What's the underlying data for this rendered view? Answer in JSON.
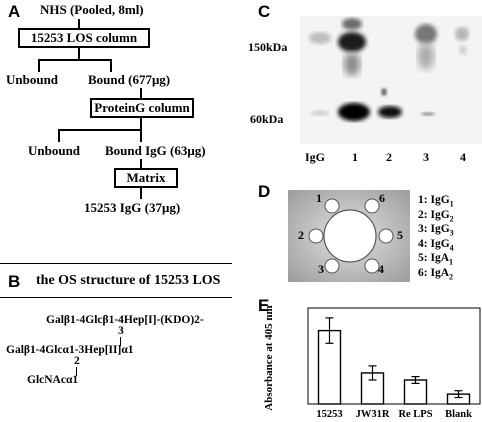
{
  "panelA": {
    "letter": "A",
    "source": "NHS (Pooled, 8ml)",
    "box1": "15253 LOS column",
    "unbound1": "Unbound",
    "bound1": "Bound (677μg)",
    "box2": "ProteinG column",
    "unbound2": "Unbound",
    "bound2": "Bound IgG (63μg)",
    "box3": "Matrix",
    "result": "15253 IgG (37μg)"
  },
  "panelB": {
    "letter": "B",
    "title": "the OS structure of 15253 LOS",
    "line1": "Galβ1-4Glcβ1-4Hep[I]-(KDO)2-",
    "num3": "3",
    "line2": "Galβ1-4Glcα1-3Hep[II]α1",
    "num2": "2",
    "line3": "GlcNAcα1"
  },
  "panelC": {
    "letter": "C",
    "marker_150": "150kDa",
    "marker_60": "60kDa",
    "lanes": [
      "IgG",
      "1",
      "2",
      "3",
      "4"
    ]
  },
  "panelD": {
    "letter": "D",
    "wells": [
      "1",
      "2",
      "3",
      "4",
      "5",
      "6"
    ],
    "legend": [
      {
        "num": "1:",
        "name": "IgG",
        "sub": "1"
      },
      {
        "num": "2:",
        "name": "IgG",
        "sub": "2"
      },
      {
        "num": "3:",
        "name": "IgG",
        "sub": "3"
      },
      {
        "num": "4:",
        "name": "IgG",
        "sub": "4"
      },
      {
        "num": "5:",
        "name": "IgA",
        "sub": "1"
      },
      {
        "num": "6:",
        "name": "IgA",
        "sub": "2"
      }
    ]
  },
  "panelE": {
    "letter": "E"
  },
  "chart_data": {
    "type": "bar",
    "categories": [
      "15253",
      "JW31R",
      "Re LPS",
      "Blank"
    ],
    "values": [
      2.6,
      1.1,
      0.85,
      0.35
    ],
    "errors": [
      0.45,
      0.25,
      0.12,
      0.12
    ],
    "ylabel": "Absorbance at 405 nm",
    "xlabel": "",
    "ylim": [
      0,
      3.4
    ]
  }
}
